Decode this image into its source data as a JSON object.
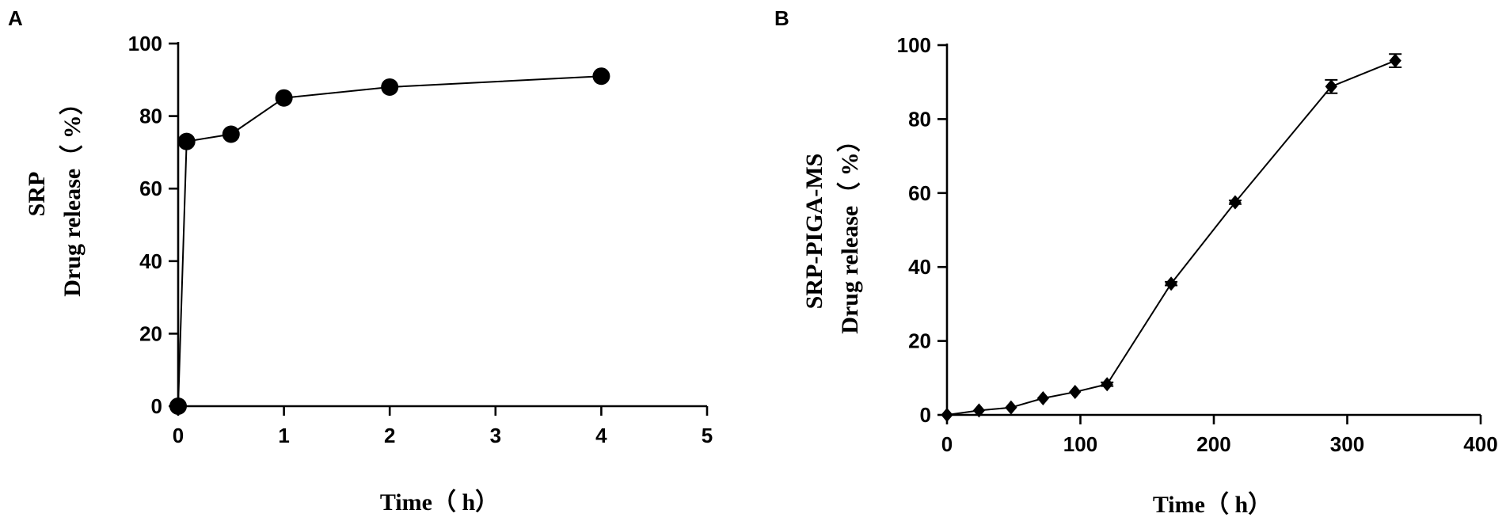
{
  "chart_data": [
    {
      "panel": "A",
      "type": "line",
      "title": "",
      "xlabel": "Time（ h）",
      "ylabel_lines": [
        "SRP",
        "Drug release（ %）"
      ],
      "xlim": [
        0,
        5
      ],
      "ylim": [
        0,
        100
      ],
      "xticks": [
        0,
        1,
        2,
        3,
        4,
        5
      ],
      "yticks": [
        0,
        20,
        40,
        60,
        80,
        100
      ],
      "grid": false,
      "legend": "none",
      "marker": "circle",
      "series": [
        {
          "x": [
            0,
            0.08,
            0.5,
            1,
            2,
            4
          ],
          "y": [
            0,
            73,
            75,
            85,
            88,
            91
          ]
        }
      ]
    },
    {
      "panel": "B",
      "type": "line",
      "title": "",
      "xlabel": "Time（ h）",
      "ylabel_lines": [
        "SRP-PIGA-MS",
        "Drug release（ %）"
      ],
      "xlim": [
        0,
        400
      ],
      "ylim": [
        0,
        100
      ],
      "xticks": [
        0,
        100,
        200,
        300,
        400
      ],
      "yticks": [
        0,
        20,
        40,
        60,
        80,
        100
      ],
      "grid": false,
      "legend": "none",
      "marker": "diamond",
      "series": [
        {
          "x": [
            0,
            24,
            48,
            72,
            96,
            120,
            168,
            216,
            288,
            336
          ],
          "y": [
            0,
            1.2,
            2,
            4.5,
            6.2,
            8.3,
            35.5,
            57.5,
            88.8,
            95.8
          ],
          "error": [
            0,
            0,
            0,
            0,
            0,
            0.5,
            0.5,
            0.5,
            1.8,
            1.8
          ]
        }
      ]
    }
  ]
}
